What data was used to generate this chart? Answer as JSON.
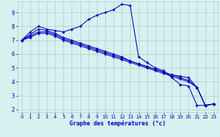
{
  "xlabel": "Graphe des températures (°c)",
  "ylabel": "",
  "bg_color": "#d8f0f0",
  "line_color": "#0000bb",
  "grid_color": "#aacccc",
  "xlim": [
    -0.5,
    23.5
  ],
  "ylim": [
    1.8,
    9.8
  ],
  "yticks": [
    2,
    3,
    4,
    5,
    6,
    7,
    8,
    9
  ],
  "xticks": [
    0,
    1,
    2,
    3,
    4,
    5,
    6,
    7,
    8,
    9,
    10,
    11,
    12,
    13,
    14,
    15,
    16,
    17,
    18,
    19,
    20,
    21,
    22,
    23
  ],
  "series1_x": [
    0,
    1,
    2,
    3,
    4,
    5,
    6,
    7,
    8,
    9,
    10,
    11,
    12,
    13,
    14,
    15,
    16,
    17,
    18,
    19,
    20,
    21,
    22,
    23
  ],
  "series1_y": [
    7.0,
    7.6,
    8.0,
    7.8,
    7.7,
    7.6,
    7.8,
    8.0,
    8.5,
    8.8,
    9.0,
    9.2,
    9.6,
    9.5,
    5.8,
    5.4,
    5.0,
    4.8,
    4.3,
    3.8,
    3.7,
    2.3,
    2.3,
    2.4
  ],
  "series2_x": [
    0,
    1,
    2,
    3,
    4,
    5,
    6,
    7,
    8,
    9,
    10,
    11,
    12,
    13,
    14,
    15,
    16,
    17,
    18,
    19,
    20,
    21,
    22,
    23
  ],
  "series2_y": [
    7.0,
    7.4,
    7.8,
    7.7,
    7.5,
    7.2,
    7.0,
    6.8,
    6.6,
    6.4,
    6.2,
    6.0,
    5.8,
    5.5,
    5.3,
    5.1,
    4.9,
    4.7,
    4.5,
    4.4,
    4.3,
    3.6,
    2.3,
    2.4
  ],
  "series3_x": [
    0,
    1,
    2,
    3,
    4,
    5,
    6,
    7,
    8,
    9,
    10,
    11,
    12,
    13,
    14,
    15,
    16,
    17,
    18,
    19,
    20,
    21,
    22,
    23
  ],
  "series3_y": [
    7.0,
    7.3,
    7.6,
    7.6,
    7.4,
    7.1,
    6.9,
    6.7,
    6.5,
    6.3,
    6.1,
    5.9,
    5.7,
    5.5,
    5.3,
    5.1,
    4.9,
    4.7,
    4.5,
    4.3,
    4.1,
    3.6,
    2.3,
    2.4
  ],
  "series4_x": [
    0,
    1,
    2,
    3,
    4,
    5,
    6,
    7,
    8,
    9,
    10,
    11,
    12,
    13,
    14,
    15,
    16,
    17,
    18,
    19,
    20,
    21,
    22,
    23
  ],
  "series4_y": [
    7.0,
    7.2,
    7.5,
    7.5,
    7.3,
    7.0,
    6.8,
    6.6,
    6.4,
    6.2,
    6.0,
    5.8,
    5.6,
    5.4,
    5.2,
    5.0,
    4.8,
    4.6,
    4.4,
    4.2,
    4.0,
    3.6,
    2.3,
    2.4
  ]
}
